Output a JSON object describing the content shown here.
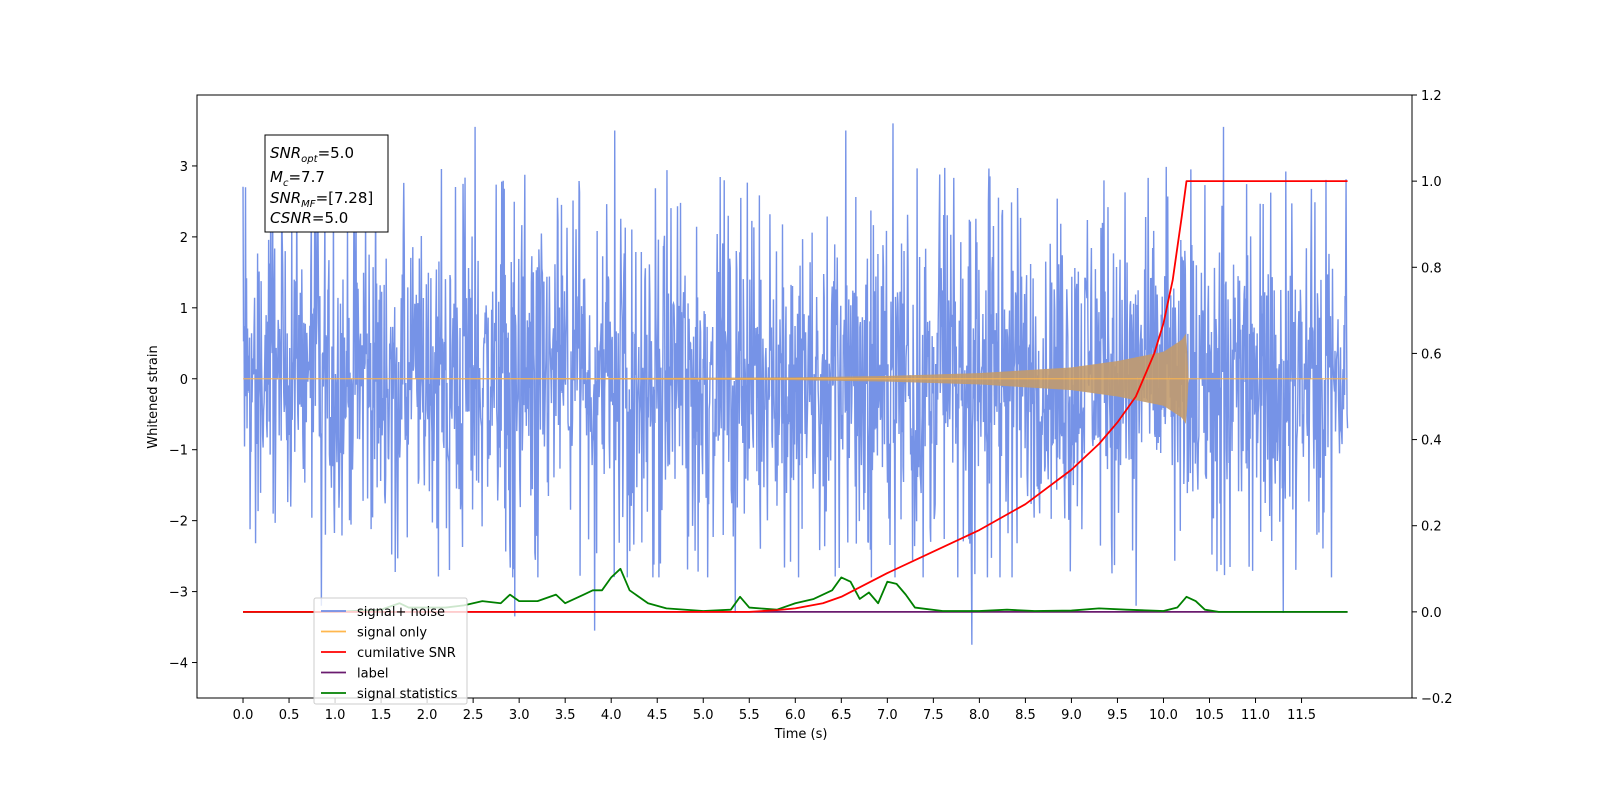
{
  "chart_data": {
    "type": "line",
    "xlabel": "Time (s)",
    "ylabel_left": "Whitened strain",
    "ylabel_right": "",
    "xlim": [
      -0.5,
      12.7
    ],
    "ylim_left": [
      -4.5,
      4.0
    ],
    "ylim_right": [
      -0.2,
      1.2
    ],
    "x_ticks": [
      "0.0",
      "0.5",
      "1.0",
      "1.5",
      "2.0",
      "2.5",
      "3.0",
      "3.5",
      "4.0",
      "4.5",
      "5.0",
      "5.5",
      "6.0",
      "6.5",
      "7.0",
      "7.5",
      "8.0",
      "8.5",
      "9.0",
      "9.5",
      "10.0",
      "10.5",
      "11.0",
      "11.5"
    ],
    "y_ticks_left": [
      "−4",
      "−3",
      "−2",
      "−1",
      "0",
      "1",
      "2",
      "3"
    ],
    "y_ticks_right": [
      "−0.2",
      "0.0",
      "0.2",
      "0.4",
      "0.6",
      "0.8",
      "1.0",
      "1.2"
    ],
    "grid": false,
    "legend_position": "lower-left",
    "info_box": [
      "SNR_opt=5.0",
      "M_c=7.7",
      "SNR_MF=[7.28]",
      "CSNR=5.0"
    ],
    "signal_noise": {
      "t_start": 0.0,
      "t_end": 12.0,
      "typical_range": [
        -2.2,
        2.4
      ],
      "peaks": [
        [
          0.03,
          2.7
        ],
        [
          0.85,
          3.0
        ],
        [
          2.52,
          3.55
        ],
        [
          4.04,
          3.5
        ],
        [
          6.55,
          3.5
        ],
        [
          7.06,
          3.6
        ],
        [
          10.65,
          3.55
        ]
      ],
      "troughs": [
        [
          0.85,
          -3.2
        ],
        [
          2.95,
          -3.35
        ],
        [
          3.82,
          -3.55
        ],
        [
          5.35,
          -3.3
        ],
        [
          7.92,
          -3.75
        ],
        [
          9.7,
          -3.2
        ],
        [
          11.3,
          -3.3
        ]
      ]
    },
    "signal_only": {
      "merger_time": 10.25,
      "envelope": [
        [
          0.0,
          0.0
        ],
        [
          4.0,
          0.01
        ],
        [
          6.0,
          0.02
        ],
        [
          7.0,
          0.04
        ],
        [
          8.0,
          0.08
        ],
        [
          9.0,
          0.16
        ],
        [
          9.5,
          0.25
        ],
        [
          10.0,
          0.38
        ],
        [
          10.2,
          0.55
        ],
        [
          10.25,
          0.65
        ],
        [
          10.27,
          0.0
        ],
        [
          12.0,
          0.0
        ]
      ]
    },
    "series": [
      {
        "name": "signal+ noise",
        "axis": "left",
        "color": "#6f8de6"
      },
      {
        "name": "signal only",
        "axis": "left",
        "color": "#ffb74d"
      },
      {
        "name": "cumilative SNR",
        "axis": "right",
        "color": "#ff0000",
        "points": [
          [
            0.0,
            0.0
          ],
          [
            5.0,
            0.0
          ],
          [
            5.5,
            0.0
          ],
          [
            5.8,
            0.004
          ],
          [
            6.0,
            0.008
          ],
          [
            6.3,
            0.02
          ],
          [
            6.5,
            0.035
          ],
          [
            7.0,
            0.09
          ],
          [
            7.5,
            0.14
          ],
          [
            8.0,
            0.19
          ],
          [
            8.5,
            0.25
          ],
          [
            9.0,
            0.33
          ],
          [
            9.3,
            0.39
          ],
          [
            9.5,
            0.44
          ],
          [
            9.7,
            0.5
          ],
          [
            9.9,
            0.6
          ],
          [
            10.0,
            0.67
          ],
          [
            10.1,
            0.77
          ],
          [
            10.2,
            0.92
          ],
          [
            10.25,
            1.0
          ],
          [
            12.0,
            1.0
          ]
        ]
      },
      {
        "name": "label",
        "axis": "right",
        "color": "#6a1b6f",
        "points": [
          [
            0.0,
            0.0
          ],
          [
            12.0,
            0.0
          ]
        ]
      },
      {
        "name": "signal statistics",
        "axis": "right",
        "color": "#008000",
        "points": [
          [
            0.0,
            0.0
          ],
          [
            1.0,
            0.0
          ],
          [
            1.5,
            0.005
          ],
          [
            1.7,
            0.02
          ],
          [
            1.8,
            0.01
          ],
          [
            2.2,
            0.01
          ],
          [
            2.4,
            0.015
          ],
          [
            2.6,
            0.025
          ],
          [
            2.8,
            0.02
          ],
          [
            2.9,
            0.04
          ],
          [
            3.0,
            0.025
          ],
          [
            3.2,
            0.025
          ],
          [
            3.4,
            0.04
          ],
          [
            3.5,
            0.02
          ],
          [
            3.7,
            0.04
          ],
          [
            3.8,
            0.05
          ],
          [
            3.9,
            0.05
          ],
          [
            4.0,
            0.08
          ],
          [
            4.1,
            0.1
          ],
          [
            4.2,
            0.05
          ],
          [
            4.4,
            0.02
          ],
          [
            4.6,
            0.008
          ],
          [
            5.0,
            0.002
          ],
          [
            5.3,
            0.005
          ],
          [
            5.4,
            0.035
          ],
          [
            5.5,
            0.01
          ],
          [
            5.8,
            0.005
          ],
          [
            6.0,
            0.02
          ],
          [
            6.2,
            0.03
          ],
          [
            6.4,
            0.05
          ],
          [
            6.5,
            0.08
          ],
          [
            6.6,
            0.07
          ],
          [
            6.7,
            0.03
          ],
          [
            6.8,
            0.045
          ],
          [
            6.9,
            0.02
          ],
          [
            7.0,
            0.07
          ],
          [
            7.1,
            0.065
          ],
          [
            7.2,
            0.04
          ],
          [
            7.3,
            0.01
          ],
          [
            7.6,
            0.002
          ],
          [
            8.0,
            0.002
          ],
          [
            8.3,
            0.005
          ],
          [
            8.6,
            0.002
          ],
          [
            9.0,
            0.003
          ],
          [
            9.3,
            0.008
          ],
          [
            9.6,
            0.005
          ],
          [
            10.0,
            0.002
          ],
          [
            10.15,
            0.01
          ],
          [
            10.25,
            0.035
          ],
          [
            10.35,
            0.025
          ],
          [
            10.45,
            0.005
          ],
          [
            10.6,
            0.0
          ],
          [
            12.0,
            0.0
          ]
        ]
      }
    ]
  }
}
